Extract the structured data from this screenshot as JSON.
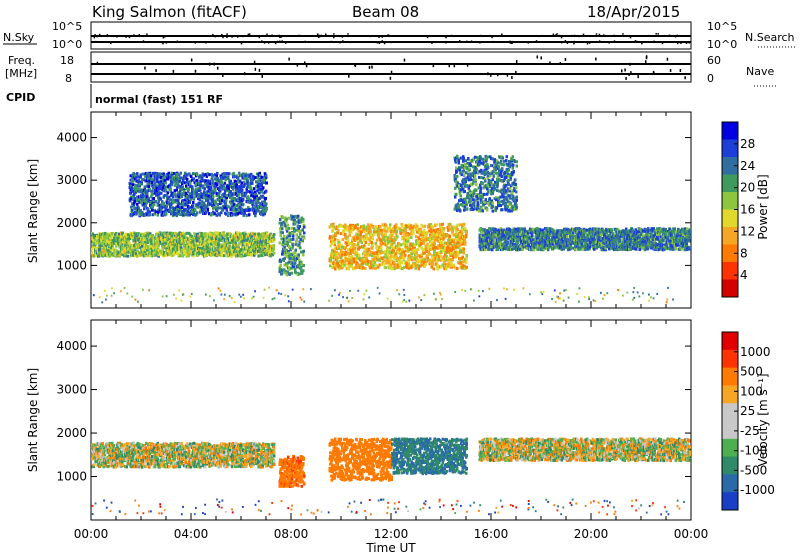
{
  "header": {
    "station": "King Salmon (fitACF)",
    "beam": "Beam 08",
    "date": "18/Apr/2015"
  },
  "strips": {
    "nsky_label": "N.Sky",
    "nsky_ticks": [
      "10^5",
      "10^0"
    ],
    "nsearch_label": "N.Search",
    "nsearch_ticks": [
      "10^5",
      "10^0"
    ],
    "freq_label_1": "Freq.",
    "freq_label_2": "[MHz]",
    "freq_ticks": [
      "18",
      "8"
    ],
    "nave_label": "Nave",
    "nave_ticks": [
      "60",
      "0"
    ],
    "cpid_label": "CPID",
    "cpid_text": "normal (fast) 151 RF"
  },
  "chart_data": [
    {
      "type": "heatmap",
      "panel": "power",
      "ylabel": "Slant Range [km]",
      "ylim": [
        0,
        4600
      ],
      "yticks": [
        1000,
        2000,
        3000,
        4000
      ],
      "xlim": [
        "00:00",
        "24:00"
      ],
      "colorbar_label": "Power [dB]",
      "colorbar_ticks": [
        "28",
        "24",
        "20",
        "16",
        "12",
        "8",
        "4"
      ],
      "colorbar_colors": [
        "#0000e0",
        "#1c3fd8",
        "#2f6e9e",
        "#3f9a5e",
        "#8cc63f",
        "#e0d82a",
        "#f5a623",
        "#ff7a00",
        "#ff3300",
        "#d40000"
      ],
      "features": [
        {
          "t0": 0.0,
          "t1": 7.3,
          "range_km": [
            1250,
            1800
          ],
          "level_db": 14,
          "note": "main band"
        },
        {
          "t0": 7.5,
          "t1": 8.5,
          "range_km": [
            800,
            2200
          ],
          "level_db": 10,
          "note": "rising arc"
        },
        {
          "t0": 9.5,
          "t1": 15.0,
          "range_km": [
            950,
            2000
          ],
          "level_db": 20,
          "note": "strong echoes"
        },
        {
          "t0": 15.5,
          "t1": 24.0,
          "range_km": [
            1400,
            1900
          ],
          "level_db": 8,
          "note": "weak band"
        },
        {
          "t0": 1.5,
          "t1": 7.0,
          "range_km": [
            2200,
            3200
          ],
          "level_db": 6,
          "note": "upper sporadic"
        },
        {
          "t0": 14.5,
          "t1": 17.0,
          "range_km": [
            2300,
            3600
          ],
          "level_db": 8,
          "note": "upper arcs"
        }
      ]
    },
    {
      "type": "heatmap",
      "panel": "velocity",
      "ylabel": "Slant Range [km]",
      "ylim": [
        0,
        4600
      ],
      "yticks": [
        1000,
        2000,
        3000,
        4000
      ],
      "xlabel": "Time UT",
      "xlim": [
        "00:00",
        "24:00"
      ],
      "xticks": [
        "00:00",
        "04:00",
        "08:00",
        "12:00",
        "16:00",
        "20:00",
        "00:00"
      ],
      "colorbar_label": "Velocity [m s⁻¹]",
      "colorbar_ticks": [
        "1000",
        "500",
        "100",
        "25",
        "-25",
        "-100",
        "-500",
        "-1000"
      ],
      "colorbar_colors": [
        "#1a3fc4",
        "#2a6aa8",
        "#2f8a6a",
        "#4caf50",
        "#c8c8c8",
        "#c8c8c8",
        "#f5a623",
        "#ff7a00",
        "#ff3300",
        "#e00000"
      ],
      "features": [
        {
          "t0": 0.0,
          "t1": 7.3,
          "range_km": [
            1250,
            1800
          ],
          "velocity": 0,
          "note": "ground scatter"
        },
        {
          "t0": 7.5,
          "t1": 8.5,
          "range_km": [
            800,
            1500
          ],
          "velocity": -400,
          "note": "orange arc"
        },
        {
          "t0": 9.5,
          "t1": 12.0,
          "range_km": [
            950,
            1900
          ],
          "velocity": -300,
          "note": "orange block"
        },
        {
          "t0": 12.0,
          "t1": 15.0,
          "range_km": [
            1100,
            1900
          ],
          "velocity": 300,
          "note": "green/blue block"
        },
        {
          "t0": 15.5,
          "t1": 24.0,
          "range_km": [
            1400,
            1900
          ],
          "velocity": 0,
          "note": "grey band"
        }
      ]
    }
  ]
}
